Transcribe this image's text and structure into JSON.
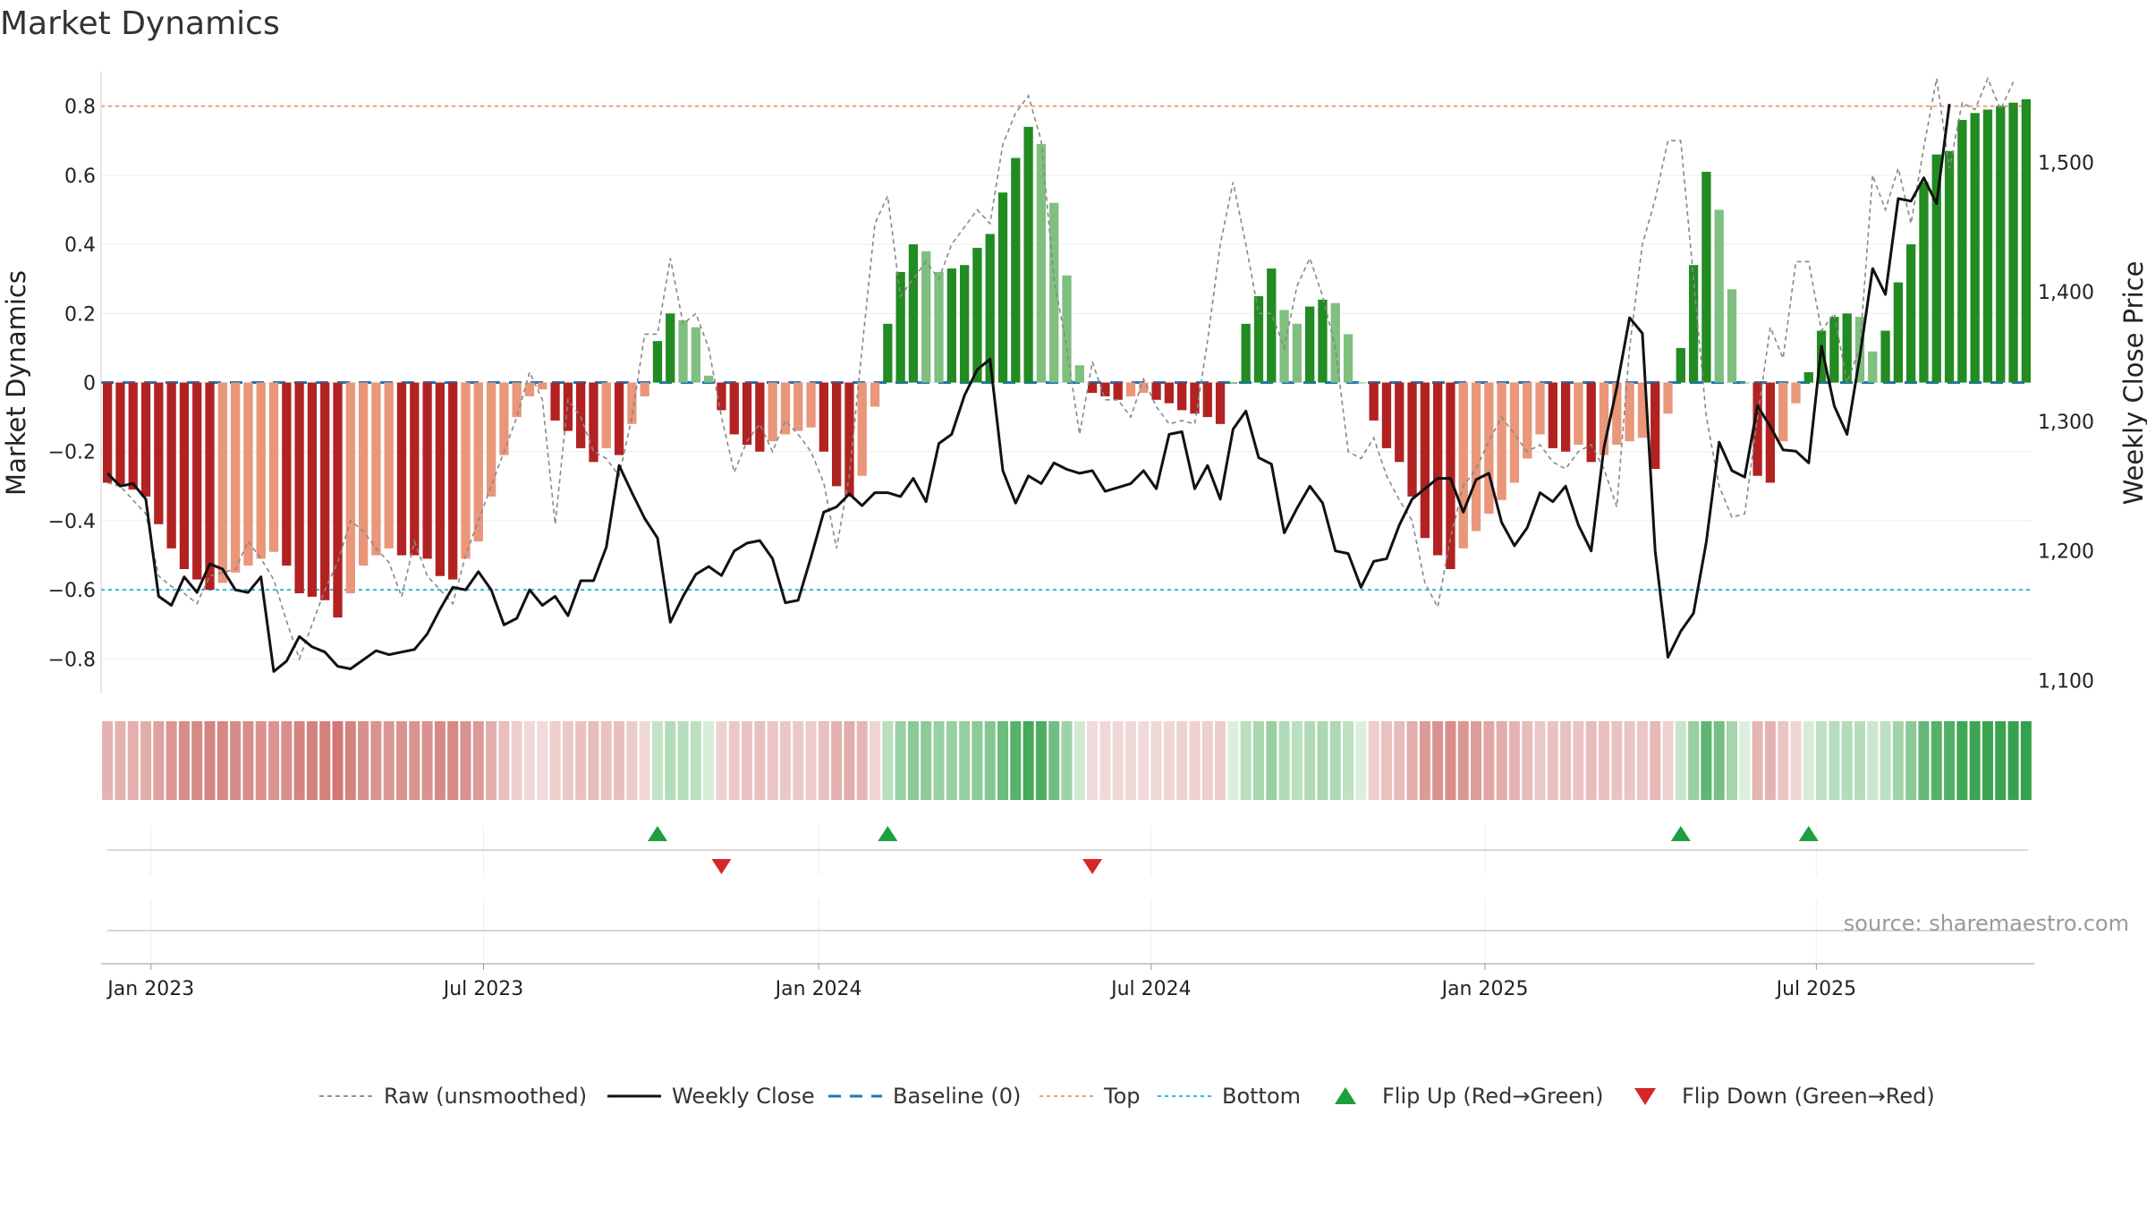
{
  "chart_data": {
    "type": "bar",
    "title": "Market Dynamics",
    "ylabel_left": "Market Dynamics",
    "ylabel_right": "Weekly Close Price",
    "ylim_left": [
      -0.9,
      0.9
    ],
    "ylim_right": [
      1090,
      1570
    ],
    "yticks_left": [
      -0.8,
      -0.6,
      -0.4,
      -0.2,
      0,
      0.2,
      0.4,
      0.6,
      0.8
    ],
    "yticks_left_labels": [
      "−0.8",
      "−0.6",
      "−0.4",
      "−0.2",
      "0",
      "0.2",
      "0.4",
      "0.6",
      "0.8"
    ],
    "yticks_right": [
      1100,
      1200,
      1300,
      1400,
      1500
    ],
    "yticks_right_labels": [
      "1,100",
      "1,200",
      "1,300",
      "1,400",
      "1,500"
    ],
    "x_start_index": 0,
    "x_ticks": [
      {
        "label": "Jan 2023",
        "week": 3.4
      },
      {
        "label": "Jul 2023",
        "week": 29.4
      },
      {
        "label": "Jan 2024",
        "week": 55.6
      },
      {
        "label": "Jul 2024",
        "week": 81.6
      },
      {
        "label": "Jan 2025",
        "week": 107.7
      },
      {
        "label": "Jul 2025",
        "week": 133.6
      }
    ],
    "top_threshold": 0.8,
    "bottom_threshold": -0.6,
    "baseline": 0,
    "momentum": [
      -0.29,
      -0.3,
      -0.31,
      -0.33,
      -0.41,
      -0.48,
      -0.54,
      -0.57,
      -0.6,
      -0.58,
      -0.55,
      -0.53,
      -0.51,
      -0.49,
      -0.53,
      -0.61,
      -0.62,
      -0.63,
      -0.68,
      -0.61,
      -0.53,
      -0.5,
      -0.48,
      -0.5,
      -0.5,
      -0.51,
      -0.56,
      -0.57,
      -0.51,
      -0.46,
      -0.33,
      -0.21,
      -0.1,
      -0.04,
      -0.02,
      -0.11,
      -0.14,
      -0.19,
      -0.23,
      -0.19,
      -0.21,
      -0.12,
      -0.04,
      0.12,
      0.2,
      0.18,
      0.16,
      0.02,
      -0.08,
      -0.15,
      -0.18,
      -0.2,
      -0.17,
      -0.15,
      -0.14,
      -0.13,
      -0.2,
      -0.3,
      -0.33,
      -0.27,
      -0.07,
      0.17,
      0.32,
      0.4,
      0.38,
      0.32,
      0.33,
      0.34,
      0.39,
      0.43,
      0.55,
      0.65,
      0.74,
      0.69,
      0.52,
      0.31,
      0.05,
      -0.03,
      -0.04,
      -0.05,
      -0.04,
      -0.03,
      -0.05,
      -0.06,
      -0.08,
      -0.09,
      -0.1,
      -0.12,
      0.0,
      0.17,
      0.25,
      0.33,
      0.21,
      0.17,
      0.22,
      0.24,
      0.23,
      0.14,
      0.0,
      -0.11,
      -0.19,
      -0.23,
      -0.33,
      -0.45,
      -0.5,
      -0.54,
      -0.48,
      -0.43,
      -0.38,
      -0.34,
      -0.29,
      -0.22,
      -0.15,
      -0.19,
      -0.2,
      -0.18,
      -0.23,
      -0.21,
      -0.18,
      -0.17,
      -0.16,
      -0.25,
      -0.09,
      0.1,
      0.34,
      0.61,
      0.5,
      0.27,
      0.0,
      -0.27,
      -0.29,
      -0.17,
      -0.06,
      0.03,
      0.15,
      0.19,
      0.2,
      0.19,
      0.09,
      0.15,
      0.29,
      0.4,
      0.58,
      0.66,
      0.67,
      0.76,
      0.78,
      0.79,
      0.8,
      0.81,
      0.82
    ],
    "raw": [
      -0.29,
      -0.3,
      -0.34,
      -0.38,
      -0.56,
      -0.59,
      -0.61,
      -0.64,
      -0.56,
      -0.55,
      -0.54,
      -0.46,
      -0.51,
      -0.57,
      -0.69,
      -0.8,
      -0.7,
      -0.6,
      -0.52,
      -0.4,
      -0.43,
      -0.48,
      -0.52,
      -0.62,
      -0.46,
      -0.56,
      -0.6,
      -0.64,
      -0.5,
      -0.4,
      -0.3,
      -0.2,
      -0.1,
      0.03,
      -0.05,
      -0.41,
      -0.05,
      -0.1,
      -0.2,
      -0.22,
      -0.27,
      -0.1,
      0.14,
      0.14,
      0.36,
      0.17,
      0.2,
      0.1,
      -0.1,
      -0.26,
      -0.17,
      -0.12,
      -0.2,
      -0.11,
      -0.15,
      -0.2,
      -0.29,
      -0.48,
      -0.27,
      0.1,
      0.46,
      0.54,
      0.25,
      0.3,
      0.35,
      0.3,
      0.4,
      0.45,
      0.5,
      0.46,
      0.69,
      0.78,
      0.83,
      0.7,
      0.3,
      0.1,
      -0.15,
      0.06,
      -0.05,
      -0.05,
      -0.1,
      0.01,
      -0.07,
      -0.12,
      -0.11,
      -0.12,
      0.12,
      0.4,
      0.58,
      0.4,
      0.2,
      0.2,
      0.1,
      0.28,
      0.36,
      0.25,
      0.1,
      -0.2,
      -0.22,
      -0.16,
      -0.27,
      -0.34,
      -0.4,
      -0.58,
      -0.65,
      -0.45,
      -0.3,
      -0.25,
      -0.17,
      -0.1,
      -0.15,
      -0.2,
      -0.18,
      -0.23,
      -0.25,
      -0.2,
      -0.18,
      -0.25,
      -0.36,
      0.1,
      0.4,
      0.53,
      0.7,
      0.7,
      0.3,
      -0.1,
      -0.3,
      -0.39,
      -0.38,
      -0.1,
      0.16,
      0.07,
      0.35,
      0.35,
      0.15,
      0.2,
      0.0,
      0.1,
      0.6,
      0.5,
      0.62,
      0.46,
      0.68,
      0.88,
      0.62,
      0.81,
      0.79,
      0.88,
      0.79,
      0.87
    ],
    "price": [
      1260,
      1250,
      1252,
      1240,
      1165,
      1158,
      1180,
      1168,
      1190,
      1186,
      1170,
      1168,
      1180,
      1107,
      1115,
      1134,
      1126,
      1122,
      1111,
      1109,
      1116,
      1123,
      1120,
      1122,
      1124,
      1136,
      1155,
      1172,
      1170,
      1184,
      1170,
      1143,
      1148,
      1170,
      1158,
      1165,
      1150,
      1177,
      1177,
      1203,
      1266,
      1245,
      1225,
      1210,
      1145,
      1165,
      1182,
      1188,
      1181,
      1200,
      1206,
      1208,
      1194,
      1160,
      1162,
      1195,
      1230,
      1234,
      1244,
      1235,
      1245,
      1245,
      1242,
      1256,
      1238,
      1283,
      1290,
      1320,
      1340,
      1348,
      1262,
      1237,
      1258,
      1252,
      1268,
      1263,
      1260,
      1262,
      1246,
      1249,
      1252,
      1262,
      1248,
      1290,
      1292,
      1248,
      1266,
      1240,
      1294,
      1308,
      1272,
      1267,
      1214,
      1233,
      1250,
      1237,
      1200,
      1198,
      1172,
      1192,
      1194,
      1220,
      1240,
      1248,
      1256,
      1256,
      1230,
      1255,
      1260,
      1222,
      1204,
      1218,
      1245,
      1238,
      1250,
      1220,
      1200,
      1280,
      1326,
      1380,
      1368,
      1200,
      1118,
      1138,
      1152,
      1207,
      1284,
      1262,
      1257,
      1312,
      1296,
      1278,
      1277,
      1268,
      1358,
      1312,
      1290,
      1350,
      1418,
      1398,
      1472,
      1470,
      1488,
      1468,
      1545
    ]
  },
  "strip_labels": {
    "flip_up": "▲",
    "flip_down": "▼"
  },
  "legend": [
    {
      "key": "raw",
      "label": "Raw (unsmoothed)"
    },
    {
      "key": "weekly",
      "label": "Weekly Close"
    },
    {
      "key": "baseline",
      "label": "Baseline (0)"
    },
    {
      "key": "top",
      "label": "Top"
    },
    {
      "key": "bottom",
      "label": "Bottom"
    },
    {
      "key": "flip_up",
      "label": "Flip Up (Red→Green)"
    },
    {
      "key": "flip_down",
      "label": "Flip Down (Green→Red)"
    }
  ],
  "source": "source: sharemaestro.com",
  "colors": {
    "strong_red": "#b22222",
    "light_red": "#e9967a",
    "strong_green": "#228b22",
    "light_green": "#7fbf7f",
    "raw": "#888888",
    "weekly": "#111111",
    "baseline": "#1f77b4",
    "top": "#f0a070",
    "bottom": "#2bbbd6",
    "flip_up": "#1e9e3e",
    "flip_down": "#d62728"
  }
}
